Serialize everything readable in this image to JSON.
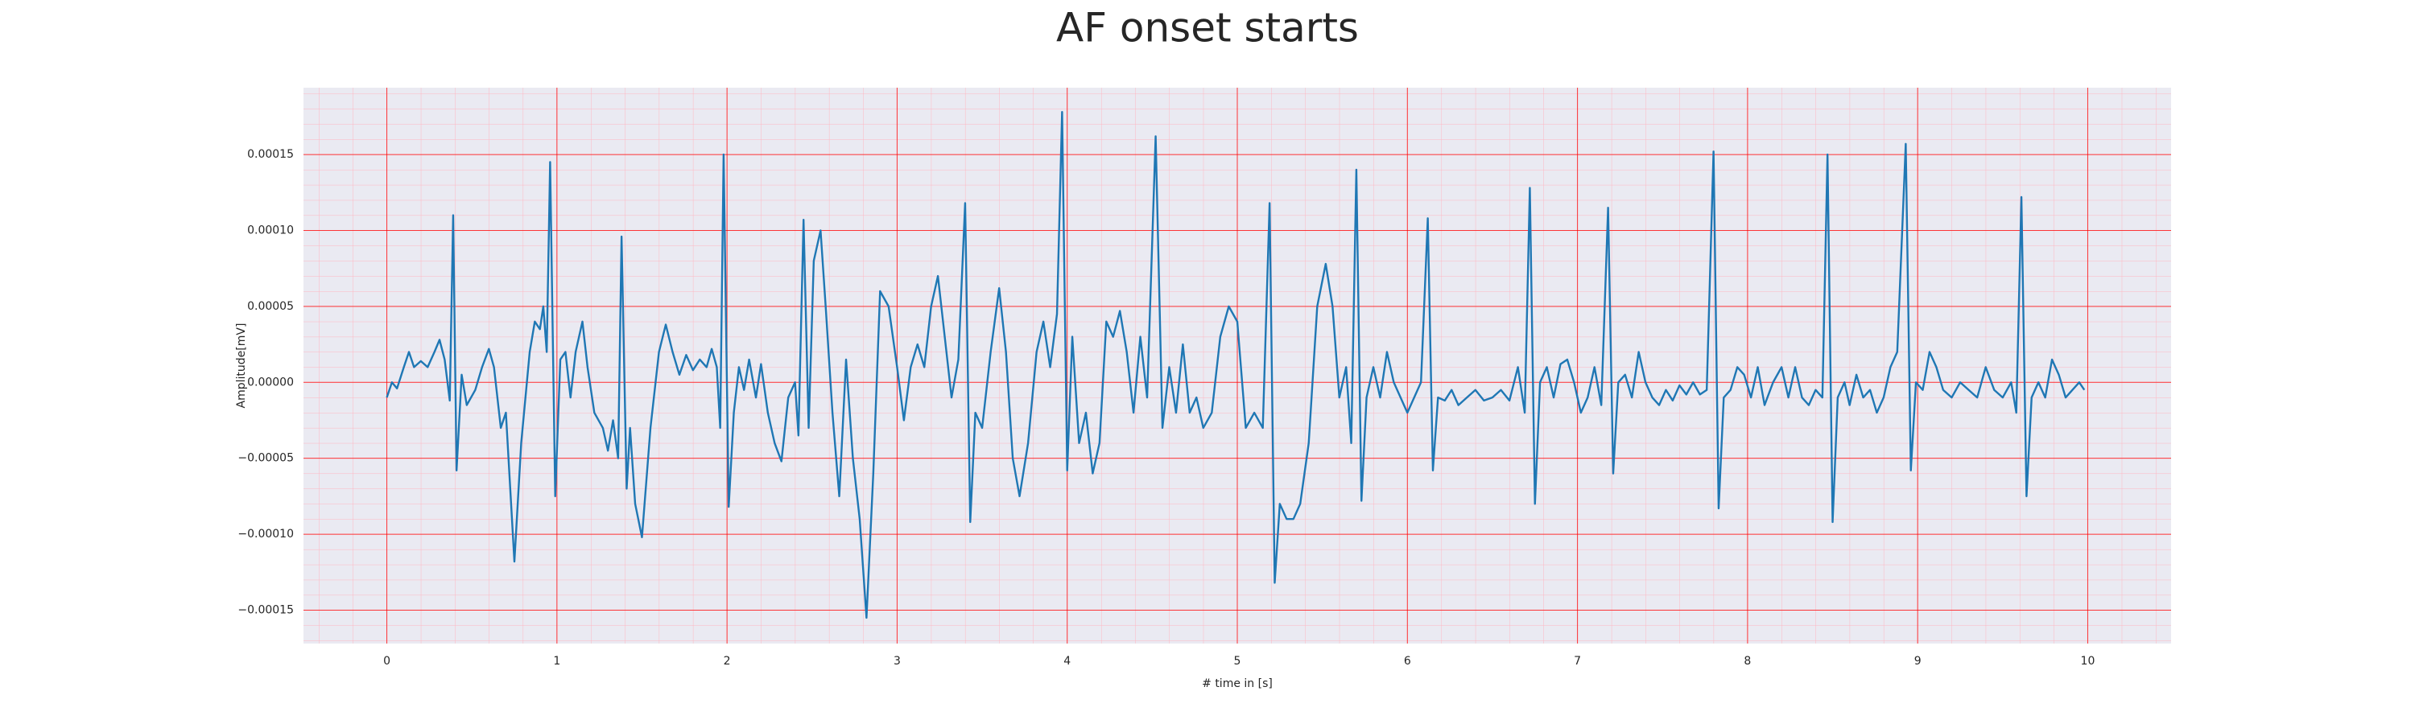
{
  "chart_data": {
    "type": "line",
    "title": "AF onset starts",
    "xlabel": "# time in [s]",
    "ylabel": "Amplitude[mV]",
    "color": "#1f77b4",
    "grid": true,
    "minor_grid": true,
    "xlim": [
      -0.49,
      10.49
    ],
    "ylim": [
      -0.000172,
      0.000194
    ],
    "xticks": [
      0,
      1,
      2,
      3,
      4,
      5,
      6,
      7,
      8,
      9,
      10
    ],
    "yticks": [
      {
        "value": -0.00015,
        "label": "−0.00015"
      },
      {
        "value": -0.0001,
        "label": "−0.00010"
      },
      {
        "value": -5e-05,
        "label": "−0.00005"
      },
      {
        "value": 0,
        "label": "0.00000"
      },
      {
        "value": 5e-05,
        "label": "0.00005"
      },
      {
        "value": 0.0001,
        "label": "0.00010"
      },
      {
        "value": 0.00015,
        "label": "0.00015"
      }
    ],
    "x": [
      0,
      0.03,
      0.06,
      0.1,
      0.13,
      0.16,
      0.2,
      0.24,
      0.28,
      0.31,
      0.34,
      0.37,
      0.39,
      0.41,
      0.44,
      0.47,
      0.52,
      0.56,
      0.6,
      0.63,
      0.67,
      0.7,
      0.75,
      0.79,
      0.84,
      0.87,
      0.9,
      0.92,
      0.94,
      0.96,
      0.99,
      1.02,
      1.05,
      1.08,
      1.11,
      1.15,
      1.18,
      1.22,
      1.27,
      1.3,
      1.33,
      1.36,
      1.38,
      1.41,
      1.43,
      1.46,
      1.5,
      1.55,
      1.6,
      1.64,
      1.68,
      1.72,
      1.76,
      1.8,
      1.84,
      1.88,
      1.91,
      1.94,
      1.96,
      1.98,
      2.01,
      2.04,
      2.07,
      2.1,
      2.13,
      2.17,
      2.2,
      2.24,
      2.28,
      2.32,
      2.36,
      2.4,
      2.42,
      2.45,
      2.48,
      2.51,
      2.55,
      2.58,
      2.62,
      2.66,
      2.7,
      2.74,
      2.78,
      2.82,
      2.86,
      2.9,
      2.95,
      3,
      3.04,
      3.08,
      3.12,
      3.16,
      3.2,
      3.24,
      3.28,
      3.32,
      3.36,
      3.4,
      3.43,
      3.46,
      3.5,
      3.55,
      3.6,
      3.64,
      3.68,
      3.72,
      3.77,
      3.82,
      3.86,
      3.9,
      3.94,
      3.97,
      4,
      4.03,
      4.07,
      4.11,
      4.15,
      4.19,
      4.23,
      4.27,
      4.31,
      4.35,
      4.39,
      4.43,
      4.47,
      4.52,
      4.56,
      4.6,
      4.64,
      4.68,
      4.72,
      4.76,
      4.8,
      4.85,
      4.9,
      4.95,
      5,
      5.05,
      5.1,
      5.15,
      5.19,
      5.22,
      5.25,
      5.29,
      5.33,
      5.37,
      5.42,
      5.47,
      5.52,
      5.56,
      5.6,
      5.64,
      5.67,
      5.7,
      5.73,
      5.76,
      5.8,
      5.84,
      5.88,
      5.92,
      5.96,
      6,
      6.04,
      6.08,
      6.12,
      6.15,
      6.18,
      6.22,
      6.26,
      6.3,
      6.35,
      6.4,
      6.45,
      6.5,
      6.55,
      6.6,
      6.65,
      6.69,
      6.72,
      6.75,
      6.78,
      6.82,
      6.86,
      6.9,
      6.94,
      6.98,
      7.02,
      7.06,
      7.1,
      7.14,
      7.18,
      7.21,
      7.24,
      7.28,
      7.32,
      7.36,
      7.4,
      7.44,
      7.48,
      7.52,
      7.56,
      7.6,
      7.64,
      7.68,
      7.72,
      7.76,
      7.8,
      7.83,
      7.86,
      7.9,
      7.94,
      7.98,
      8.02,
      8.06,
      8.1,
      8.15,
      8.2,
      8.24,
      8.28,
      8.32,
      8.36,
      8.4,
      8.44,
      8.47,
      8.5,
      8.53,
      8.57,
      8.6,
      8.64,
      8.68,
      8.72,
      8.76,
      8.8,
      8.84,
      8.88,
      8.93,
      8.96,
      8.99,
      9.03,
      9.07,
      9.11,
      9.15,
      9.2,
      9.25,
      9.3,
      9.35,
      9.4,
      9.45,
      9.5,
      9.55,
      9.58,
      9.61,
      9.64,
      9.67,
      9.71,
      9.75,
      9.79,
      9.83,
      9.87,
      9.91,
      9.95,
      9.98
    ],
    "values": [
      -1e-05,
      0,
      -4e-06,
      1e-05,
      2e-05,
      1e-05,
      1.4e-05,
      1e-05,
      2e-05,
      2.8e-05,
      1.5e-05,
      -1.2e-05,
      0.00011,
      -5.8e-05,
      5e-06,
      -1.5e-05,
      -5e-06,
      1e-05,
      2.2e-05,
      1e-05,
      -3e-05,
      -2e-05,
      -0.000118,
      -4e-05,
      2e-05,
      4e-05,
      3.5e-05,
      5e-05,
      2e-05,
      0.000145,
      -7.5e-05,
      1.5e-05,
      2e-05,
      -1e-05,
      2e-05,
      4e-05,
      1e-05,
      -2e-05,
      -3e-05,
      -4.5e-05,
      -2.5e-05,
      -5e-05,
      9.6e-05,
      -7e-05,
      -3e-05,
      -8e-05,
      -0.000102,
      -3e-05,
      2e-05,
      3.8e-05,
      2e-05,
      5e-06,
      1.8e-05,
      8e-06,
      1.5e-05,
      1e-05,
      2.2e-05,
      1e-05,
      -3e-05,
      0.00015,
      -8.2e-05,
      -2e-05,
      1e-05,
      -5e-06,
      1.5e-05,
      -1e-05,
      1.2e-05,
      -2e-05,
      -4e-05,
      -5.2e-05,
      -1e-05,
      0,
      -3.5e-05,
      0.000107,
      -3e-05,
      8e-05,
      0.0001,
      5e-05,
      -2e-05,
      -7.5e-05,
      1.5e-05,
      -5e-05,
      -9e-05,
      -0.000155,
      -6e-05,
      6e-05,
      5e-05,
      1e-05,
      -2.5e-05,
      1e-05,
      2.5e-05,
      1e-05,
      5e-05,
      7e-05,
      3e-05,
      -1e-05,
      1.5e-05,
      0.000118,
      -9.2e-05,
      -2e-05,
      -3e-05,
      2e-05,
      6.2e-05,
      2e-05,
      -5e-05,
      -7.5e-05,
      -4e-05,
      2e-05,
      4e-05,
      1e-05,
      4.5e-05,
      0.000178,
      -5.8e-05,
      3e-05,
      -4e-05,
      -2e-05,
      -6e-05,
      -4e-05,
      4e-05,
      3e-05,
      4.7e-05,
      2e-05,
      -2e-05,
      3e-05,
      -1e-05,
      0.000162,
      -3e-05,
      1e-05,
      -2e-05,
      2.5e-05,
      -2e-05,
      -1e-05,
      -3e-05,
      -2e-05,
      3e-05,
      5e-05,
      4e-05,
      -3e-05,
      -2e-05,
      -3e-05,
      0.000118,
      -0.000132,
      -8e-05,
      -9e-05,
      -9e-05,
      -8e-05,
      -4e-05,
      5e-05,
      7.8e-05,
      5e-05,
      -1e-05,
      1e-05,
      -4e-05,
      0.00014,
      -7.8e-05,
      -1e-05,
      1e-05,
      -1e-05,
      2e-05,
      0,
      -1e-05,
      -2e-05,
      -1e-05,
      0,
      0.000108,
      -5.8e-05,
      -1e-05,
      -1.2e-05,
      -5e-06,
      -1.5e-05,
      -1e-05,
      -5e-06,
      -1.2e-05,
      -1e-05,
      -5e-06,
      -1.2e-05,
      1e-05,
      -2e-05,
      0.000128,
      -8e-05,
      0,
      1e-05,
      -1e-05,
      1.2e-05,
      1.5e-05,
      0,
      -2e-05,
      -1e-05,
      1e-05,
      -1.5e-05,
      0.000115,
      -6e-05,
      0,
      5e-06,
      -1e-05,
      2e-05,
      0,
      -1e-05,
      -1.5e-05,
      -5e-06,
      -1.2e-05,
      -2e-06,
      -8e-06,
      0,
      -8e-06,
      -5e-06,
      0.000152,
      -8.3e-05,
      -1e-05,
      -5e-06,
      1e-05,
      5e-06,
      -1e-05,
      1e-05,
      -1.5e-05,
      0,
      1e-05,
      -1e-05,
      1e-05,
      -1e-05,
      -1.5e-05,
      -5e-06,
      -1e-05,
      0.00015,
      -9.2e-05,
      -1e-05,
      0,
      -1.5e-05,
      5e-06,
      -1e-05,
      -5e-06,
      -2e-05,
      -1e-05,
      1e-05,
      2e-05,
      0.000157,
      -5.8e-05,
      0,
      -5e-06,
      2e-05,
      1e-05,
      -5e-06,
      -1e-05,
      0,
      -5e-06,
      -1e-05,
      1e-05,
      -5e-06,
      -1e-05,
      0,
      -2e-05,
      0.000122,
      -7.5e-05,
      -1e-05,
      0,
      -1e-05,
      1.5e-05,
      5e-06,
      -1e-05,
      -5e-06,
      0,
      -5e-06
    ]
  }
}
